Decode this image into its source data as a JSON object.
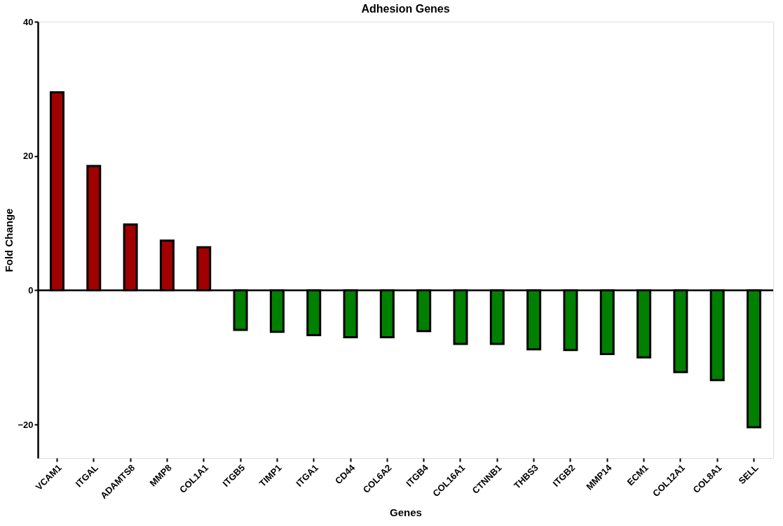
{
  "chart_data": {
    "type": "bar",
    "title": "Adhesion Genes",
    "xlabel": "Genes",
    "ylabel": "Fold Change",
    "categories": [
      "VCAM1",
      "ITGAL",
      "ADAMTS8",
      "MMP8",
      "COL1A1",
      "ITGB5",
      "TIMP1",
      "ITGA1",
      "CD44",
      "COL6A2",
      "ITGB4",
      "COL16A1",
      "CTNNB1",
      "THBS3",
      "ITGB2",
      "MMP14",
      "ECM1",
      "COL12A1",
      "COL8A1",
      "SELL"
    ],
    "values": [
      29.5,
      18.5,
      9.8,
      7.4,
      6.4,
      -5.9,
      -6.2,
      -6.7,
      -7.0,
      -7.0,
      -6.1,
      -8.0,
      -8.0,
      -8.8,
      -8.9,
      -9.5,
      -10.0,
      -12.2,
      -13.4,
      -20.4
    ],
    "colors": [
      "#a00000",
      "#a00000",
      "#a00000",
      "#a00000",
      "#a00000",
      "#008000",
      "#008000",
      "#008000",
      "#008000",
      "#008000",
      "#008000",
      "#008000",
      "#008000",
      "#008000",
      "#008000",
      "#008000",
      "#008000",
      "#008000",
      "#008000",
      "#008000"
    ],
    "ylim": [
      -25,
      40
    ],
    "yticks": [
      -20,
      0,
      20,
      40
    ],
    "grid": false,
    "ref_lines": [
      {
        "axis": "y",
        "value": 0,
        "color": "#000000"
      }
    ]
  }
}
